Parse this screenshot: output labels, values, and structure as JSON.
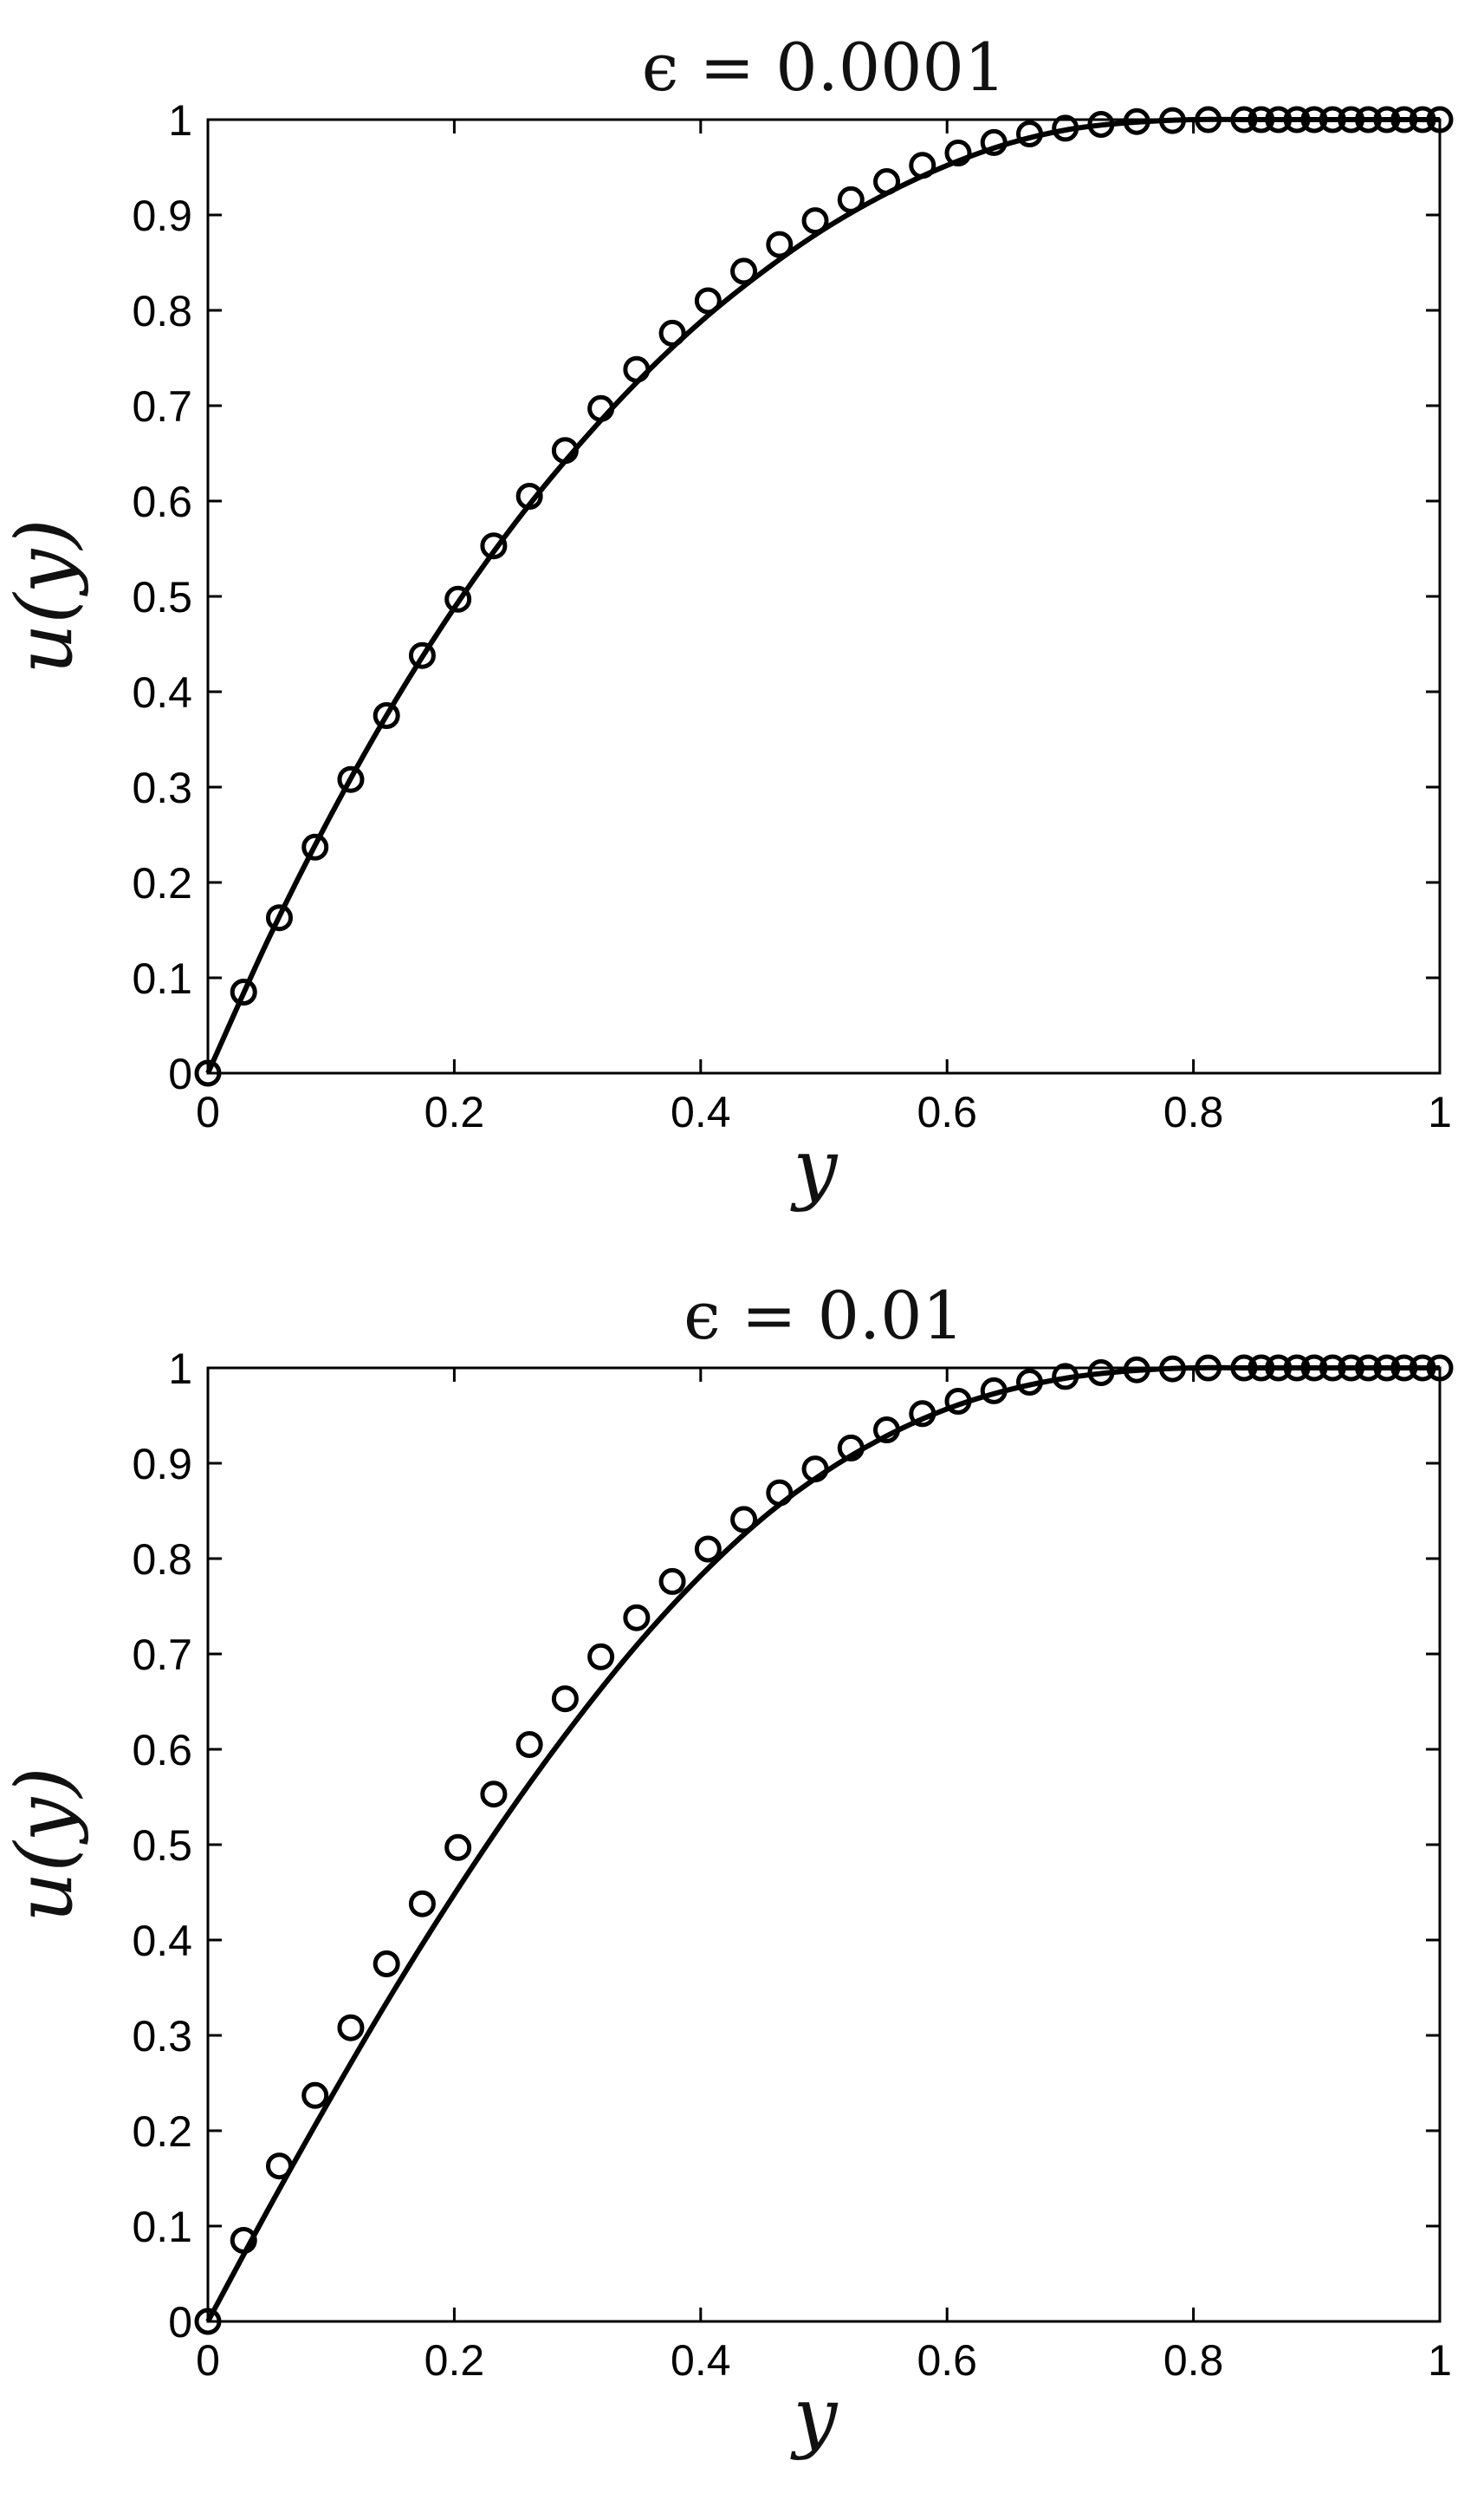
{
  "chart_data": [
    {
      "type": "line",
      "title": "ϵ = 0.0001",
      "xlabel": "y",
      "ylabel": "u(y)",
      "xlim": [
        0,
        1
      ],
      "ylim": [
        0,
        1
      ],
      "xticks": [
        "0",
        "0.2",
        "0.4",
        "0.6",
        "0.8",
        "1"
      ],
      "yticks": [
        "0",
        "0.1",
        "0.2",
        "0.3",
        "0.4",
        "0.5",
        "0.6",
        "0.7",
        "0.8",
        "0.9",
        "1"
      ],
      "grid": false,
      "series": [
        {
          "style": "solid-line",
          "x": [
            0,
            0.05,
            0.1,
            0.15,
            0.2,
            0.25,
            0.3,
            0.35,
            0.4,
            0.45,
            0.5,
            0.55,
            0.6,
            0.65,
            0.7,
            0.75,
            0.8,
            0.85,
            0.9,
            0.95,
            1
          ],
          "y": [
            0,
            0.143,
            0.271,
            0.386,
            0.488,
            0.578,
            0.657,
            0.727,
            0.788,
            0.84,
            0.885,
            0.922,
            0.952,
            0.975,
            0.99,
            0.997,
            1,
            1,
            1,
            1,
            1
          ]
        },
        {
          "style": "open-circles",
          "x": [
            0,
            0.029,
            0.058,
            0.087,
            0.116,
            0.145,
            0.174,
            0.203,
            0.232,
            0.261,
            0.29,
            0.319,
            0.348,
            0.377,
            0.406,
            0.435,
            0.464,
            0.493,
            0.522,
            0.551,
            0.58,
            0.609,
            0.638,
            0.667,
            0.696,
            0.725,
            0.754,
            0.783,
            0.812,
            0.841,
            0.855,
            0.869,
            0.884,
            0.898,
            0.913,
            0.928,
            0.942,
            0.957,
            0.971,
            0.986,
            1
          ],
          "y": [
            0,
            0.085,
            0.163,
            0.237,
            0.308,
            0.375,
            0.438,
            0.497,
            0.553,
            0.605,
            0.653,
            0.697,
            0.738,
            0.776,
            0.81,
            0.841,
            0.869,
            0.894,
            0.916,
            0.935,
            0.952,
            0.965,
            0.976,
            0.985,
            0.991,
            0.995,
            0.998,
            0.999,
            1,
            1,
            1,
            1,
            1,
            1,
            1,
            1,
            1,
            1,
            1,
            1,
            1
          ]
        }
      ]
    },
    {
      "type": "line",
      "title": "ϵ = 0.01",
      "xlabel": "y",
      "ylabel": "u(y)",
      "xlim": [
        0,
        1
      ],
      "ylim": [
        0,
        1
      ],
      "xticks": [
        "0",
        "0.2",
        "0.4",
        "0.6",
        "0.8",
        "1"
      ],
      "yticks": [
        "0",
        "0.1",
        "0.2",
        "0.3",
        "0.4",
        "0.5",
        "0.6",
        "0.7",
        "0.8",
        "0.9",
        "1"
      ],
      "grid": false,
      "series": [
        {
          "style": "solid-line",
          "x": [
            0,
            0.05,
            0.1,
            0.15,
            0.2,
            0.25,
            0.3,
            0.35,
            0.4,
            0.45,
            0.5,
            0.55,
            0.6,
            0.65,
            0.7,
            0.75,
            0.8,
            0.85,
            0.9,
            0.95,
            1
          ],
          "y": [
            0,
            0.12,
            0.235,
            0.345,
            0.448,
            0.544,
            0.632,
            0.712,
            0.782,
            0.842,
            0.89,
            0.928,
            0.957,
            0.977,
            0.99,
            0.997,
            1,
            1,
            1,
            1,
            1
          ]
        },
        {
          "style": "open-circles",
          "x": [
            0,
            0.029,
            0.058,
            0.087,
            0.116,
            0.145,
            0.174,
            0.203,
            0.232,
            0.261,
            0.29,
            0.319,
            0.348,
            0.377,
            0.406,
            0.435,
            0.464,
            0.493,
            0.522,
            0.551,
            0.58,
            0.609,
            0.638,
            0.667,
            0.696,
            0.725,
            0.754,
            0.783,
            0.812,
            0.841,
            0.855,
            0.869,
            0.884,
            0.898,
            0.913,
            0.928,
            0.942,
            0.957,
            0.971,
            0.986,
            1
          ],
          "y": [
            0,
            0.085,
            0.163,
            0.237,
            0.308,
            0.375,
            0.438,
            0.497,
            0.553,
            0.605,
            0.653,
            0.697,
            0.738,
            0.776,
            0.81,
            0.841,
            0.869,
            0.894,
            0.916,
            0.935,
            0.952,
            0.965,
            0.976,
            0.985,
            0.991,
            0.995,
            0.998,
            0.999,
            1,
            1,
            1,
            1,
            1,
            1,
            1,
            1,
            1,
            1,
            1,
            1,
            1
          ]
        }
      ]
    }
  ]
}
